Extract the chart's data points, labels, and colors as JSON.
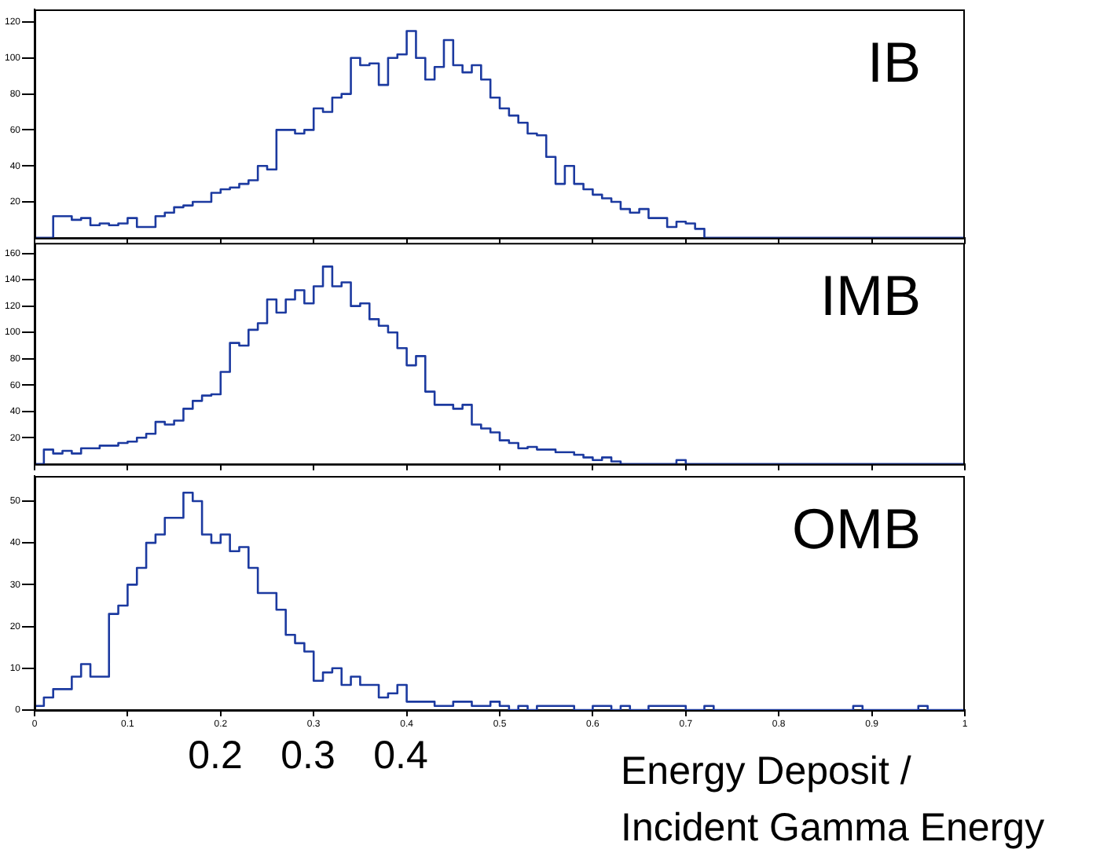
{
  "chart_data": [
    {
      "type": "histogram",
      "title": "IB",
      "color": "#1c3aa0",
      "grid": false,
      "tick_labels": "y",
      "bins": [
        0,
        0.01,
        0.02,
        0.03,
        0.04,
        0.05,
        0.06,
        0.07,
        0.08,
        0.09,
        0.1,
        0.11,
        0.12,
        0.13,
        0.14,
        0.15,
        0.16,
        0.17,
        0.18,
        0.19,
        0.2,
        0.21,
        0.22,
        0.23,
        0.24,
        0.25,
        0.26,
        0.27,
        0.28,
        0.29,
        0.3,
        0.31,
        0.32,
        0.33,
        0.34,
        0.35,
        0.36,
        0.37,
        0.38,
        0.39,
        0.4,
        0.41,
        0.42,
        0.43,
        0.44,
        0.45,
        0.46,
        0.47,
        0.48,
        0.49,
        0.5,
        0.51,
        0.52,
        0.53,
        0.54,
        0.55,
        0.56,
        0.57,
        0.58,
        0.59,
        0.6,
        0.61,
        0.62,
        0.63,
        0.64,
        0.65,
        0.66,
        0.67,
        0.68,
        0.69,
        0.7,
        0.71,
        0.72,
        0.73,
        0.74,
        0.75,
        0.76,
        0.77,
        0.78,
        0.79,
        0.8,
        0.81,
        0.82,
        0.83,
        0.84,
        0.85,
        0.86,
        0.87,
        0.88,
        0.89,
        0.9,
        0.91,
        0.92,
        0.93,
        0.94,
        0.95,
        0.96,
        0.97,
        0.98,
        0.99,
        1
      ],
      "values": [
        0,
        0,
        12,
        12,
        10,
        11,
        7,
        8,
        7,
        8,
        11,
        6,
        6,
        12,
        14,
        17,
        18,
        20,
        20,
        25,
        27,
        28,
        30,
        32,
        40,
        38,
        60,
        60,
        58,
        60,
        72,
        70,
        78,
        80,
        100,
        96,
        97,
        85,
        100,
        102,
        115,
        100,
        88,
        95,
        110,
        96,
        92,
        96,
        88,
        78,
        72,
        68,
        64,
        58,
        57,
        45,
        30,
        40,
        30,
        27,
        24,
        22,
        20,
        16,
        14,
        16,
        11,
        11,
        6,
        9,
        8,
        5,
        0,
        0,
        0,
        0,
        0,
        0,
        0,
        0,
        0,
        0,
        0,
        0,
        0,
        0,
        0,
        0,
        0,
        0,
        0,
        0,
        0,
        0,
        0,
        0,
        0,
        0,
        0,
        0
      ],
      "xlim": [
        0,
        1
      ],
      "xticks": [
        0,
        0.1,
        0.2,
        0.3,
        0.4,
        0.5,
        0.6,
        0.7,
        0.8,
        0.9,
        1
      ],
      "ylim": [
        0,
        127
      ],
      "yticks": [
        20,
        40,
        60,
        80,
        100,
        120
      ]
    },
    {
      "type": "histogram",
      "title": "IMB",
      "color": "#1c3aa0",
      "grid": false,
      "tick_labels": "y",
      "bins": [
        0,
        0.01,
        0.02,
        0.03,
        0.04,
        0.05,
        0.06,
        0.07,
        0.08,
        0.09,
        0.1,
        0.11,
        0.12,
        0.13,
        0.14,
        0.15,
        0.16,
        0.17,
        0.18,
        0.19,
        0.2,
        0.21,
        0.22,
        0.23,
        0.24,
        0.25,
        0.26,
        0.27,
        0.28,
        0.29,
        0.3,
        0.31,
        0.32,
        0.33,
        0.34,
        0.35,
        0.36,
        0.37,
        0.38,
        0.39,
        0.4,
        0.41,
        0.42,
        0.43,
        0.44,
        0.45,
        0.46,
        0.47,
        0.48,
        0.49,
        0.5,
        0.51,
        0.52,
        0.53,
        0.54,
        0.55,
        0.56,
        0.57,
        0.58,
        0.59,
        0.6,
        0.61,
        0.62,
        0.63,
        0.64,
        0.65,
        0.66,
        0.67,
        0.68,
        0.69,
        0.7,
        0.71,
        0.72,
        0.73,
        0.74,
        0.75,
        0.76,
        0.77,
        0.78,
        0.79,
        0.8,
        0.81,
        0.82,
        0.83,
        0.84,
        0.85,
        0.86,
        0.87,
        0.88,
        0.89,
        0.9,
        0.91,
        0.92,
        0.93,
        0.94,
        0.95,
        0.96,
        0.97,
        0.98,
        0.99,
        1
      ],
      "values": [
        0,
        11,
        8,
        10,
        8,
        12,
        12,
        14,
        14,
        16,
        17,
        20,
        23,
        32,
        30,
        33,
        42,
        48,
        52,
        53,
        70,
        92,
        90,
        102,
        107,
        125,
        115,
        125,
        132,
        122,
        135,
        150,
        135,
        138,
        120,
        122,
        110,
        105,
        100,
        88,
        75,
        82,
        55,
        45,
        45,
        42,
        45,
        30,
        27,
        24,
        18,
        16,
        12,
        13,
        11,
        11,
        9,
        9,
        7,
        5,
        3,
        5,
        2,
        0,
        0,
        0,
        0,
        0,
        0,
        3,
        0,
        0,
        0,
        0,
        0,
        0,
        0,
        0,
        0,
        0,
        0,
        0,
        0,
        0,
        0,
        0,
        0,
        0,
        0,
        0,
        0,
        0,
        0,
        0,
        0,
        0,
        0,
        0,
        0,
        0
      ],
      "xlim": [
        0,
        1
      ],
      "xticks": [
        0,
        0.1,
        0.2,
        0.3,
        0.4,
        0.5,
        0.6,
        0.7,
        0.8,
        0.9,
        1
      ],
      "ylim": [
        0,
        168
      ],
      "yticks": [
        20,
        40,
        60,
        80,
        100,
        120,
        140,
        160
      ]
    },
    {
      "type": "histogram",
      "title": "OMB",
      "xlabel": "Energy Deposit / Incident Gamma Energy",
      "color": "#1c3aa0",
      "grid": false,
      "bins": [
        0,
        0.01,
        0.02,
        0.03,
        0.04,
        0.05,
        0.06,
        0.07,
        0.08,
        0.09,
        0.1,
        0.11,
        0.12,
        0.13,
        0.14,
        0.15,
        0.16,
        0.17,
        0.18,
        0.19,
        0.2,
        0.21,
        0.22,
        0.23,
        0.24,
        0.25,
        0.26,
        0.27,
        0.28,
        0.29,
        0.3,
        0.31,
        0.32,
        0.33,
        0.34,
        0.35,
        0.36,
        0.37,
        0.38,
        0.39,
        0.4,
        0.41,
        0.42,
        0.43,
        0.44,
        0.45,
        0.46,
        0.47,
        0.48,
        0.49,
        0.5,
        0.51,
        0.52,
        0.53,
        0.54,
        0.55,
        0.56,
        0.57,
        0.58,
        0.59,
        0.6,
        0.61,
        0.62,
        0.63,
        0.64,
        0.65,
        0.66,
        0.67,
        0.68,
        0.69,
        0.7,
        0.71,
        0.72,
        0.73,
        0.74,
        0.75,
        0.76,
        0.77,
        0.78,
        0.79,
        0.8,
        0.81,
        0.82,
        0.83,
        0.84,
        0.85,
        0.86,
        0.87,
        0.88,
        0.89,
        0.9,
        0.91,
        0.92,
        0.93,
        0.94,
        0.95,
        0.96,
        0.97,
        0.98,
        0.99,
        1
      ],
      "values": [
        1,
        3,
        5,
        5,
        8,
        11,
        8,
        8,
        23,
        25,
        30,
        34,
        40,
        42,
        46,
        46,
        52,
        50,
        42,
        40,
        42,
        38,
        39,
        34,
        28,
        28,
        24,
        18,
        16,
        14,
        7,
        9,
        10,
        6,
        8,
        6,
        6,
        3,
        4,
        6,
        2,
        2,
        2,
        1,
        1,
        2,
        2,
        1,
        1,
        2,
        1,
        0,
        1,
        0,
        1,
        1,
        1,
        1,
        0,
        0,
        1,
        1,
        0,
        1,
        0,
        0,
        1,
        1,
        1,
        1,
        0,
        0,
        1,
        0,
        0,
        0,
        0,
        0,
        0,
        0,
        0,
        0,
        0,
        0,
        0,
        0,
        0,
        0,
        1,
        0,
        0,
        0,
        0,
        0,
        0,
        1,
        0,
        0,
        0,
        0
      ],
      "xlim": [
        0,
        1
      ],
      "xticks": [
        0,
        0.1,
        0.2,
        0.3,
        0.4,
        0.5,
        0.6,
        0.7,
        0.8,
        0.9,
        1
      ],
      "ylim": [
        0,
        56
      ],
      "yticks": [
        0,
        10,
        20,
        30,
        40,
        50
      ],
      "annotations": [
        "0.2",
        "0.3",
        "0.4"
      ]
    }
  ]
}
